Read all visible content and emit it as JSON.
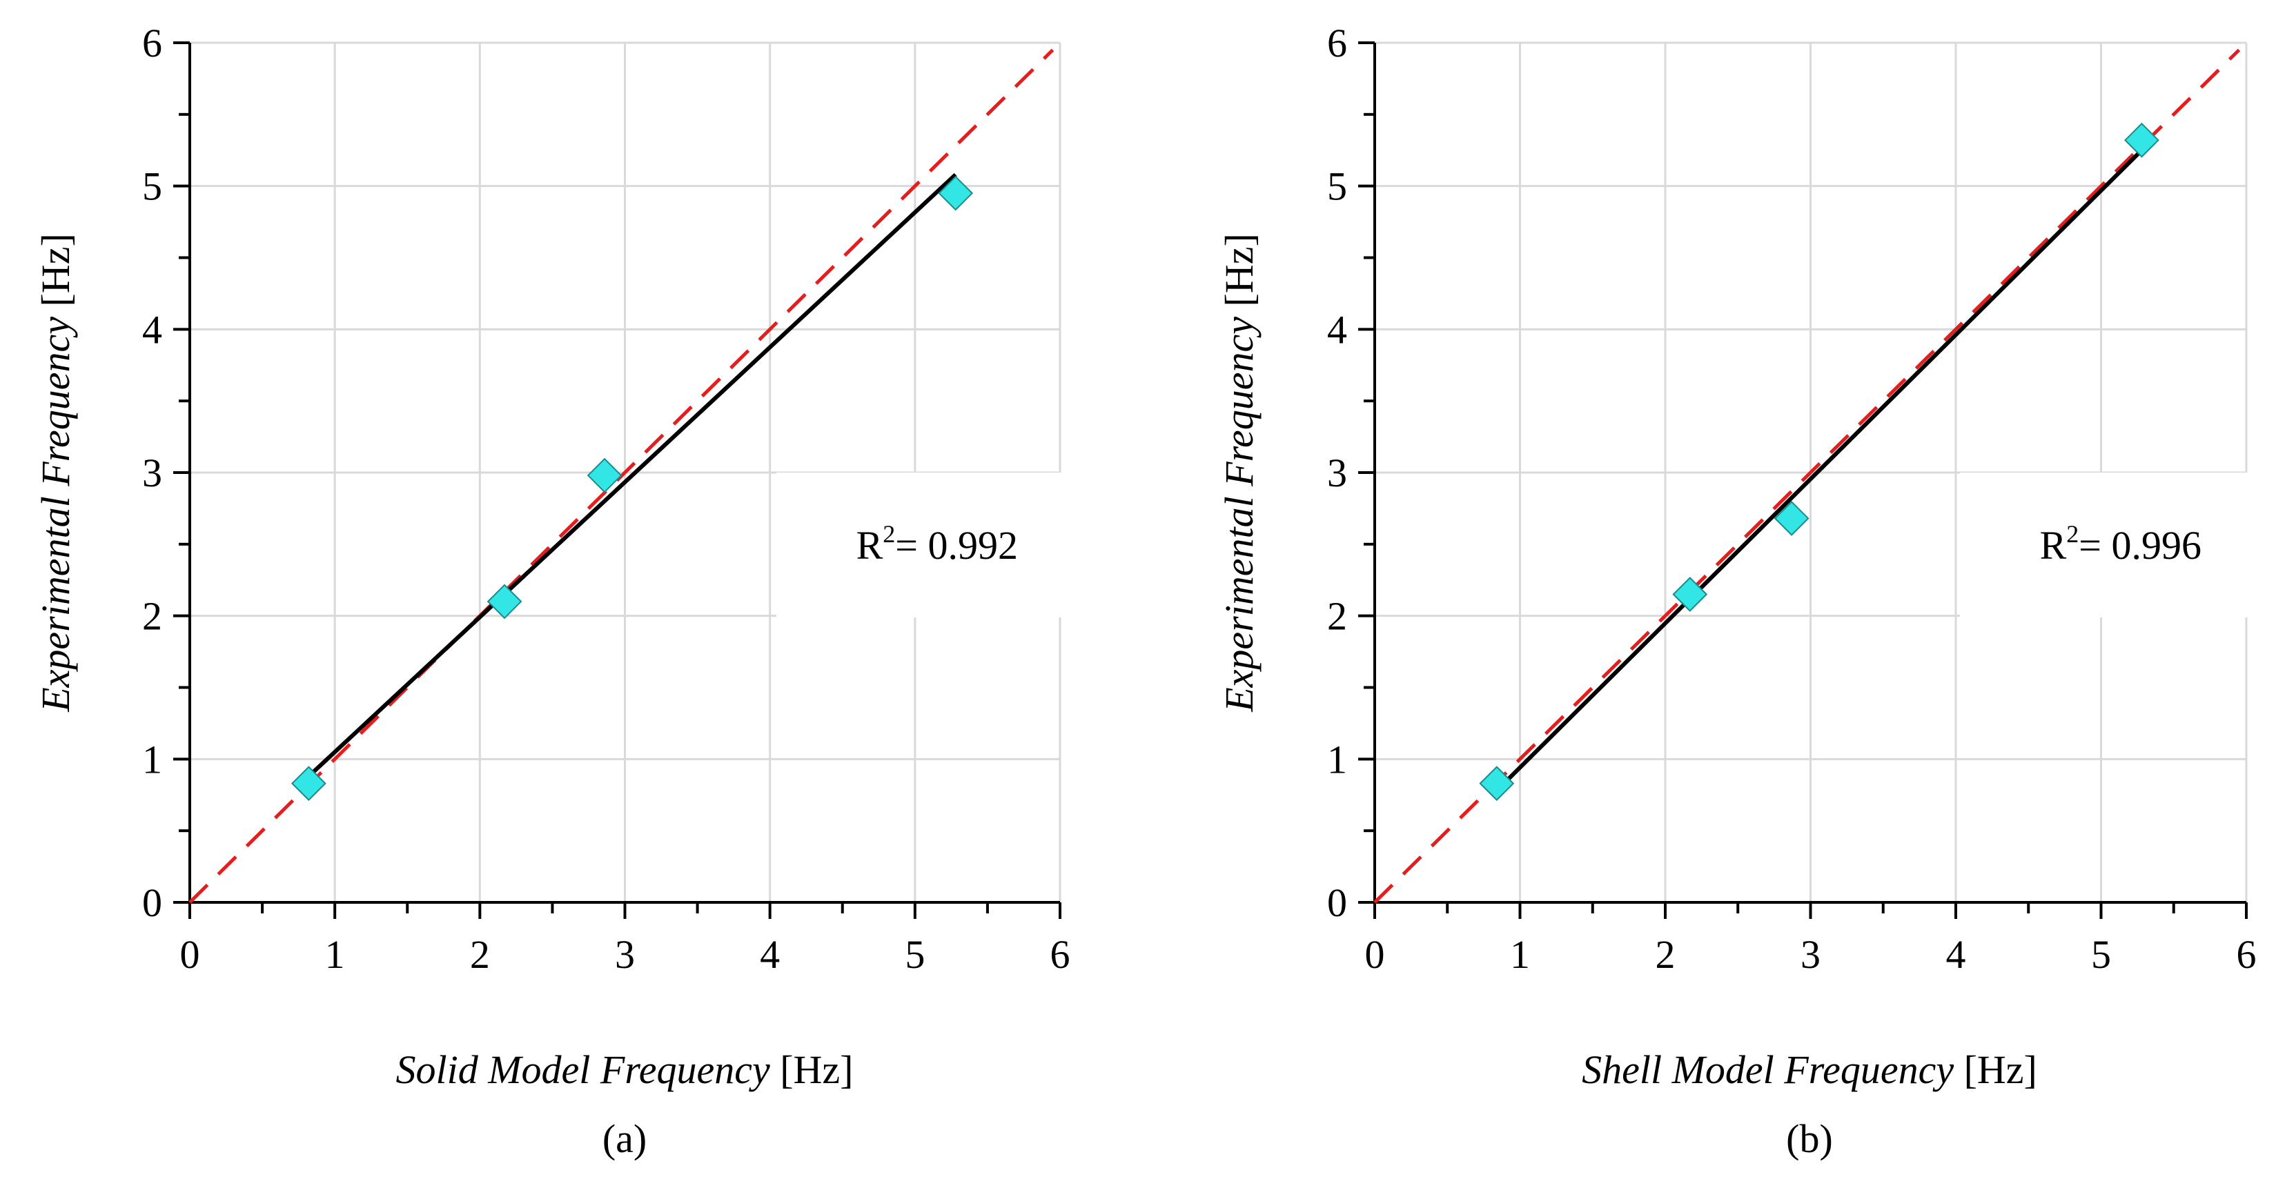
{
  "chart_data": [
    {
      "id": "a",
      "type": "scatter",
      "caption": "(a)",
      "xlabel_italic": "Solid Model Frequency",
      "xlabel_unit": " [Hz]",
      "ylabel_italic": "Experimental Frequency",
      "ylabel_unit": " [Hz]",
      "xlim": [
        0,
        6
      ],
      "ylim": [
        0,
        6
      ],
      "xticks": [
        "0",
        "1",
        "2",
        "3",
        "4",
        "5",
        "6"
      ],
      "yticks": [
        "0",
        "1",
        "2",
        "3",
        "4",
        "5",
        "6"
      ],
      "grid": true,
      "points": [
        {
          "x": 0.82,
          "y": 0.83
        },
        {
          "x": 2.17,
          "y": 2.1
        },
        {
          "x": 2.86,
          "y": 2.98
        },
        {
          "x": 5.28,
          "y": 4.95
        }
      ],
      "fit_line": {
        "x": [
          0.82,
          5.28
        ],
        "y": [
          0.88,
          5.08
        ]
      },
      "reference_line": {
        "x": [
          0,
          5.95
        ],
        "y": [
          0,
          5.95
        ]
      },
      "r2_prefix": "R",
      "r2_exp": "2",
      "r2_value": "= 0.992",
      "colors": {
        "point": "#33e6e6",
        "ref": "#e41e1e",
        "fit": "#000000"
      }
    },
    {
      "id": "b",
      "type": "scatter",
      "caption": "(b)",
      "xlabel_italic": "Shell Model Frequency",
      "xlabel_unit": " [Hz]",
      "ylabel_italic": "Experimental Frequency",
      "ylabel_unit": " [Hz]",
      "xlim": [
        0,
        6
      ],
      "ylim": [
        0,
        6
      ],
      "xticks": [
        "0",
        "1",
        "2",
        "3",
        "4",
        "5",
        "6"
      ],
      "yticks": [
        "0",
        "1",
        "2",
        "3",
        "4",
        "5",
        "6"
      ],
      "grid": true,
      "points": [
        {
          "x": 0.84,
          "y": 0.83
        },
        {
          "x": 2.17,
          "y": 2.15
        },
        {
          "x": 2.87,
          "y": 2.68
        },
        {
          "x": 5.28,
          "y": 5.32
        }
      ],
      "fit_line": {
        "x": [
          0.84,
          5.28
        ],
        "y": [
          0.78,
          5.25
        ]
      },
      "reference_line": {
        "x": [
          0,
          5.95
        ],
        "y": [
          0,
          5.95
        ]
      },
      "r2_prefix": "R",
      "r2_exp": "2",
      "r2_value": "= 0.996",
      "colors": {
        "point": "#33e6e6",
        "ref": "#e41e1e",
        "fit": "#000000"
      }
    }
  ]
}
